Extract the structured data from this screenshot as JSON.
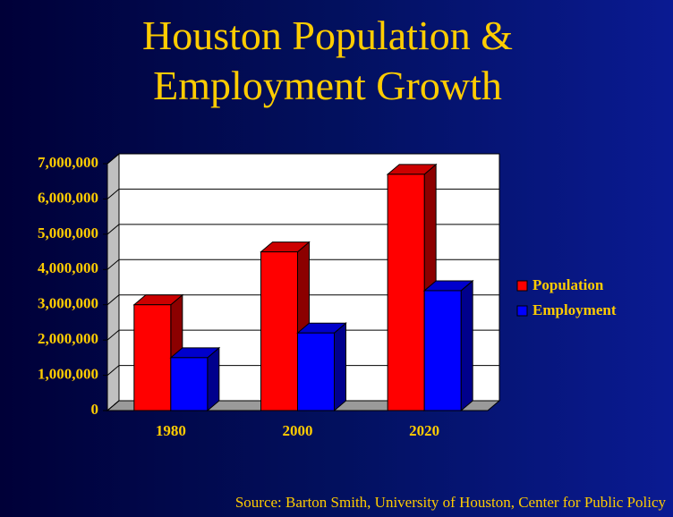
{
  "chart_data": {
    "type": "bar3d",
    "title": "Houston Population & Employment Growth",
    "source": "Source: Barton Smith, University of Houston, Center for Public Policy",
    "categories": [
      "1980",
      "2000",
      "2020"
    ],
    "series": [
      {
        "name": "Population",
        "color": "#ff0000",
        "values": [
          3000000,
          4500000,
          6700000
        ]
      },
      {
        "name": "Employment",
        "color": "#0000ff",
        "values": [
          1500000,
          2200000,
          3400000
        ]
      }
    ],
    "ylim": [
      0,
      7000000
    ],
    "yticks": [
      0,
      {
        "value": 1000000,
        "label": "1,000,000"
      },
      {
        "value": 2000000,
        "label": "2,000,000"
      },
      {
        "value": 3000000,
        "label": "3,000,000"
      },
      {
        "value": 4000000,
        "label": "4,000,000"
      },
      {
        "value": 5000000,
        "label": "5,000,000"
      },
      {
        "value": 6000000,
        "label": "6,000,000"
      },
      {
        "value": 7000000,
        "label": "7,000,000"
      }
    ],
    "grid": true,
    "legend": "right"
  }
}
